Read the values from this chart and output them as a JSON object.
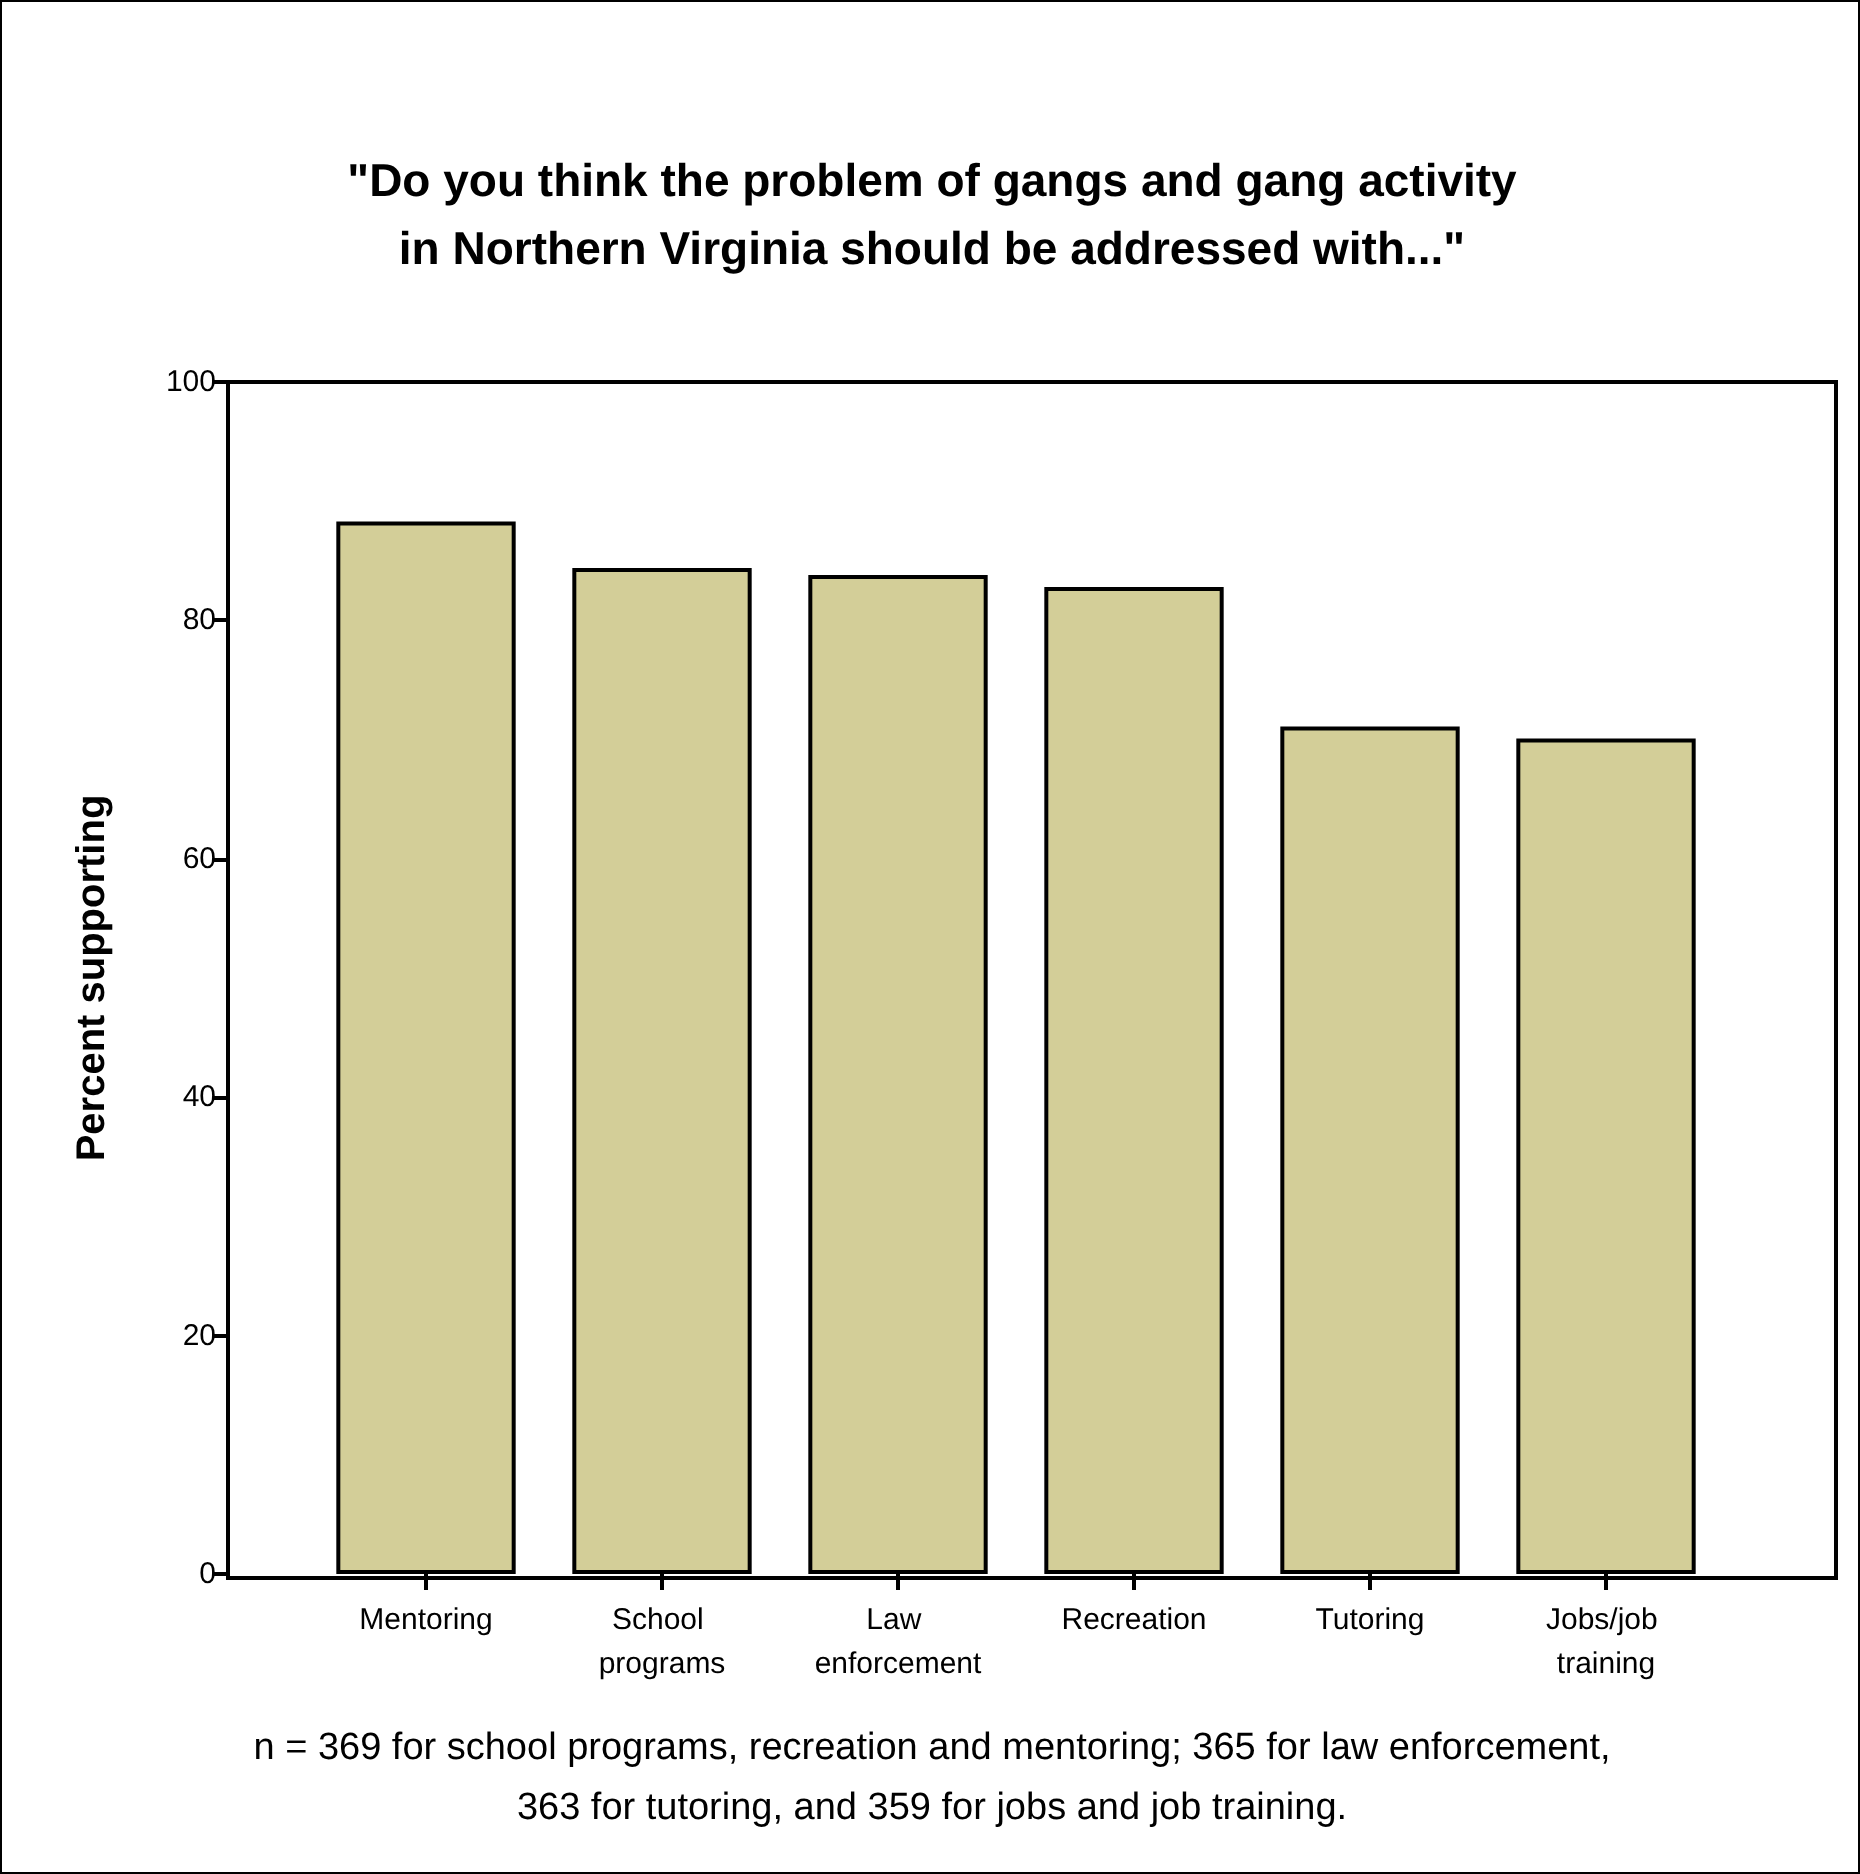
{
  "chart_data": {
    "type": "bar",
    "title": "\"Do you think the problem of gangs and gang activity\nin Northern Virginia should be addressed with...\"",
    "ylabel": "Percent supporting",
    "categories": [
      "Mentoring",
      "School programs",
      "Law enforcement",
      "Recreation",
      "Tutoring",
      "Jobs/job training"
    ],
    "values": [
      88.3,
      84.4,
      83.8,
      82.8,
      71.1,
      70.1
    ],
    "color": "#d3ce98",
    "ylim": [
      0,
      100
    ],
    "yticks": [
      0,
      20,
      40,
      60,
      80,
      100
    ],
    "grid": false,
    "annotations": [
      "n = 369 for school programs, recreation and mentoring; 365 for law enforcement,\n363 for tutoring, and 359 for jobs and job training."
    ]
  }
}
